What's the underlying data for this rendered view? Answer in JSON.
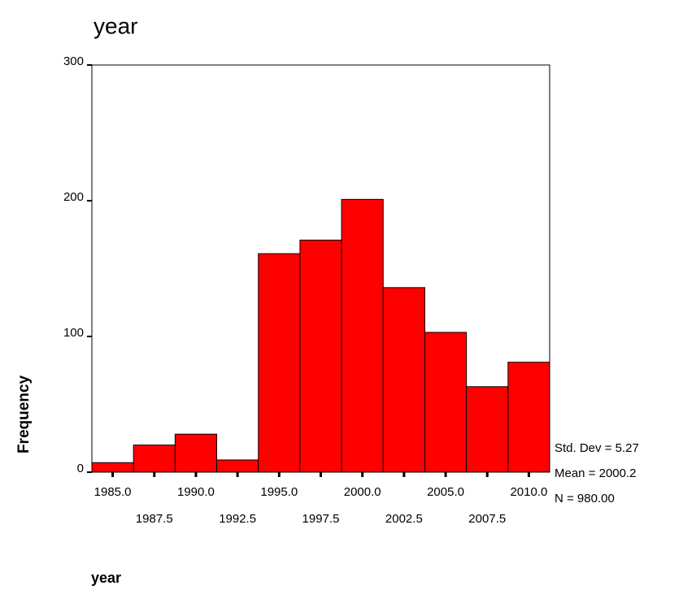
{
  "chart_data": {
    "type": "histogram",
    "title": "year",
    "x_label": "year",
    "y_label": "Frequency",
    "bins": [
      1983.75,
      1986.25,
      1988.75,
      1991.25,
      1993.75,
      1996.25,
      1998.75,
      2001.25,
      2003.75,
      2006.25,
      2008.75,
      2011.25
    ],
    "values": [
      7,
      20,
      28,
      9,
      161,
      171,
      201,
      136,
      103,
      63,
      81
    ],
    "color": "#ff0000",
    "xlim": [
      1983.75,
      2011.25
    ],
    "xticks": [
      {
        "value": 1985,
        "label": "1985.0"
      },
      {
        "value": 1987.5,
        "label": "1987.5"
      },
      {
        "value": 1990,
        "label": "1990.0"
      },
      {
        "value": 1992.5,
        "label": "1992.5"
      },
      {
        "value": 1995,
        "label": "1995.0"
      },
      {
        "value": 1997.5,
        "label": "1997.5"
      },
      {
        "value": 2000,
        "label": "2000.0"
      },
      {
        "value": 2002.5,
        "label": "2002.5"
      },
      {
        "value": 2005,
        "label": "2005.0"
      },
      {
        "value": 2007.5,
        "label": "2007.5"
      },
      {
        "value": 2010,
        "label": "2010.0"
      }
    ],
    "ylim": [
      0,
      300
    ],
    "yticks": [
      0,
      100,
      200,
      300
    ],
    "annotations": [
      "Std. Dev = 5.27",
      "Mean = 2000.2",
      "N = 980.00"
    ]
  }
}
